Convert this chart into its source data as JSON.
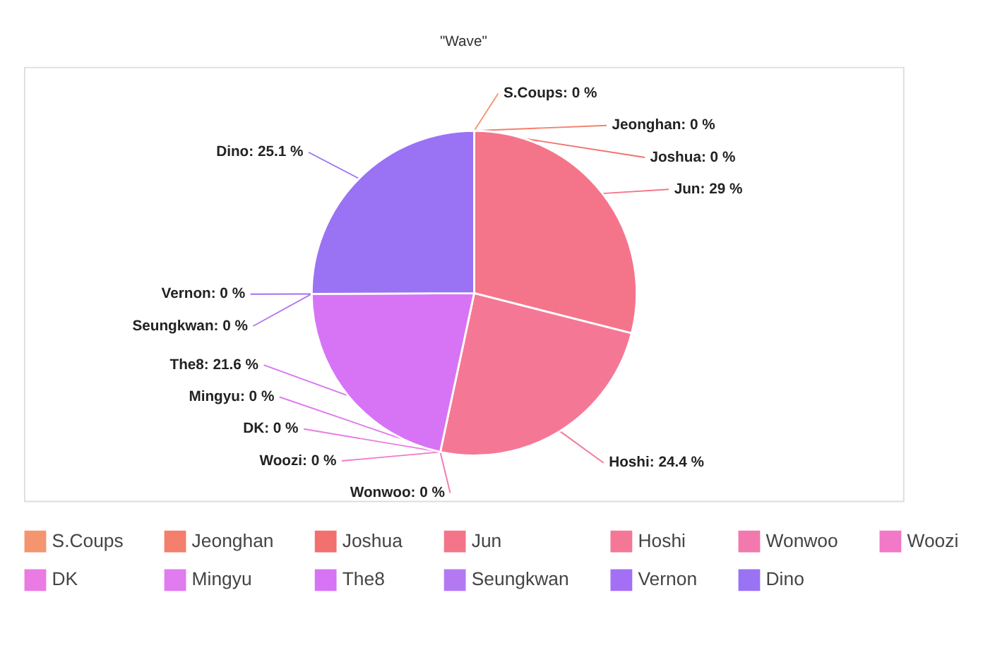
{
  "chart_data": {
    "type": "pie",
    "title": "\"Wave\"",
    "categories": [
      "S.Coups",
      "Jeonghan",
      "Joshua",
      "Jun",
      "Hoshi",
      "Wonwoo",
      "Woozi",
      "DK",
      "Mingyu",
      "The8",
      "Seungkwan",
      "Vernon",
      "Dino"
    ],
    "values": [
      0,
      0,
      0,
      29,
      24.4,
      0,
      0,
      0,
      0,
      21.6,
      0,
      0,
      25.1
    ],
    "colors": [
      "#f4956f",
      "#f47f6c",
      "#f2706e",
      "#f4758a",
      "#f47896",
      "#f378ad",
      "#f278c8",
      "#ea7be3",
      "#e07bf0",
      "#d774f6",
      "#b478f3",
      "#a370f5",
      "#9a72f4"
    ],
    "value_labels": [
      "S.Coups: 0 %",
      "Jeonghan: 0 %",
      "Joshua: 0 %",
      "Jun: 29 %",
      "Hoshi: 24.4 %",
      "Wonwoo: 0 %",
      "Woozi: 0 %",
      "DK: 0 %",
      "Mingyu: 0 %",
      "The8: 21.6 %",
      "Seungkwan: 0 %",
      "Vernon: 0 %",
      "Dino: 25.1 %"
    ],
    "legend": "bottom"
  }
}
